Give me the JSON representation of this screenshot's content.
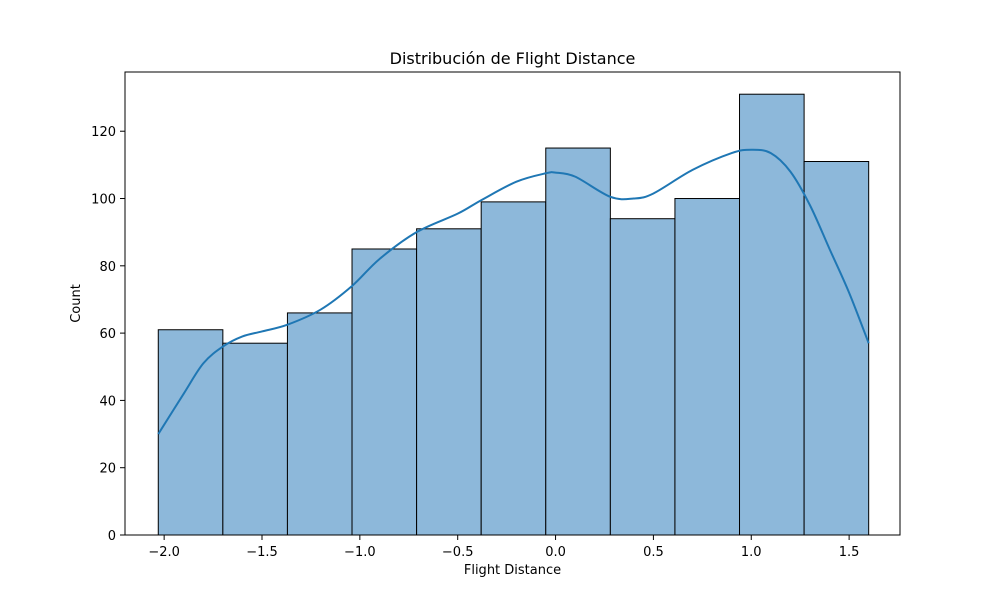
{
  "chart_data": {
    "type": "bar",
    "subtype": "histogram-with-kde",
    "title": "Distribución de Flight Distance",
    "xlabel": "Flight Distance",
    "ylabel": "Count",
    "xlim": [
      -2.2,
      1.76
    ],
    "ylim": [
      0,
      137.6
    ],
    "xticks": [
      -2.0,
      -1.5,
      -1.0,
      -0.5,
      0.0,
      0.5,
      1.0,
      1.5
    ],
    "xtick_labels": [
      "−2.0",
      "−1.5",
      "−1.0",
      "−0.5",
      "0.0",
      "0.5",
      "1.0",
      "1.5"
    ],
    "yticks": [
      0,
      20,
      40,
      60,
      80,
      100,
      120
    ],
    "ytick_labels": [
      "0",
      "20",
      "40",
      "60",
      "80",
      "100",
      "120"
    ],
    "bin_edges": [
      -2.03,
      -1.7,
      -1.37,
      -1.04,
      -0.71,
      -0.38,
      -0.05,
      0.28,
      0.61,
      0.94,
      1.27,
      1.6
    ],
    "counts": [
      61,
      57,
      66,
      85,
      91,
      99,
      115,
      94,
      100,
      131,
      111
    ],
    "bar_color": "#8db8da",
    "bar_edge_color": "#000000",
    "kde": {
      "color": "#1f77b4",
      "x": [
        -2.03,
        -1.9,
        -1.8,
        -1.7,
        -1.6,
        -1.5,
        -1.37,
        -1.2,
        -1.04,
        -0.9,
        -0.71,
        -0.5,
        -0.38,
        -0.2,
        -0.05,
        0.0,
        0.1,
        0.28,
        0.4,
        0.5,
        0.7,
        0.9,
        1.0,
        1.1,
        1.2,
        1.3,
        1.4,
        1.5,
        1.6
      ],
      "y": [
        30,
        42,
        51,
        56,
        59,
        60.5,
        62.5,
        67,
        74,
        82,
        90,
        95.5,
        99.5,
        105,
        107.5,
        107.7,
        106.5,
        100.5,
        100,
        101.5,
        108.5,
        113.5,
        114.5,
        113.5,
        108,
        98,
        85,
        72,
        57
      ]
    }
  }
}
